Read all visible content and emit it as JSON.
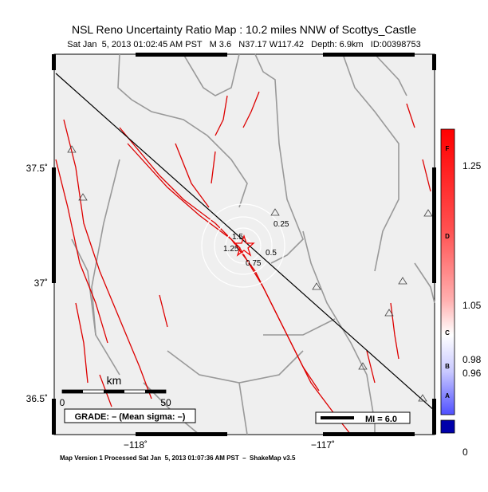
{
  "header": {
    "title": "NSL Reno Uncertainty Ratio Map : 10.2 miles NNW of Scottys_Castle",
    "subtitle": "Sat Jan  5, 2013 01:02:45 AM PST   M 3.6   N37.17 W117.42   Depth: 6.9km   ID:00398753"
  },
  "axes": {
    "lat_labels": [
      "37.5˚",
      "37˚",
      "36.5˚"
    ],
    "lon_labels": [
      "−118˚",
      "−117˚"
    ]
  },
  "map": {
    "contour_labels": [
      "0.25",
      "0.5",
      "0.75",
      "1.25",
      "1.5"
    ],
    "scale": {
      "unit": "km",
      "start": "0",
      "end": "50"
    },
    "grade": "GRADE: – (Mean sigma: –)",
    "mi_key": "MI = 6.0"
  },
  "colorbar": {
    "grades": [
      "F",
      "D",
      "C",
      "B",
      "A"
    ],
    "ticks": [
      1.25,
      1.05,
      0.98,
      0.96,
      0
    ]
  },
  "footer": "Map Version 1 Processed Sat Jan  5, 2013 01:07:36 AM PST  –  ShakeMap v3.5"
}
